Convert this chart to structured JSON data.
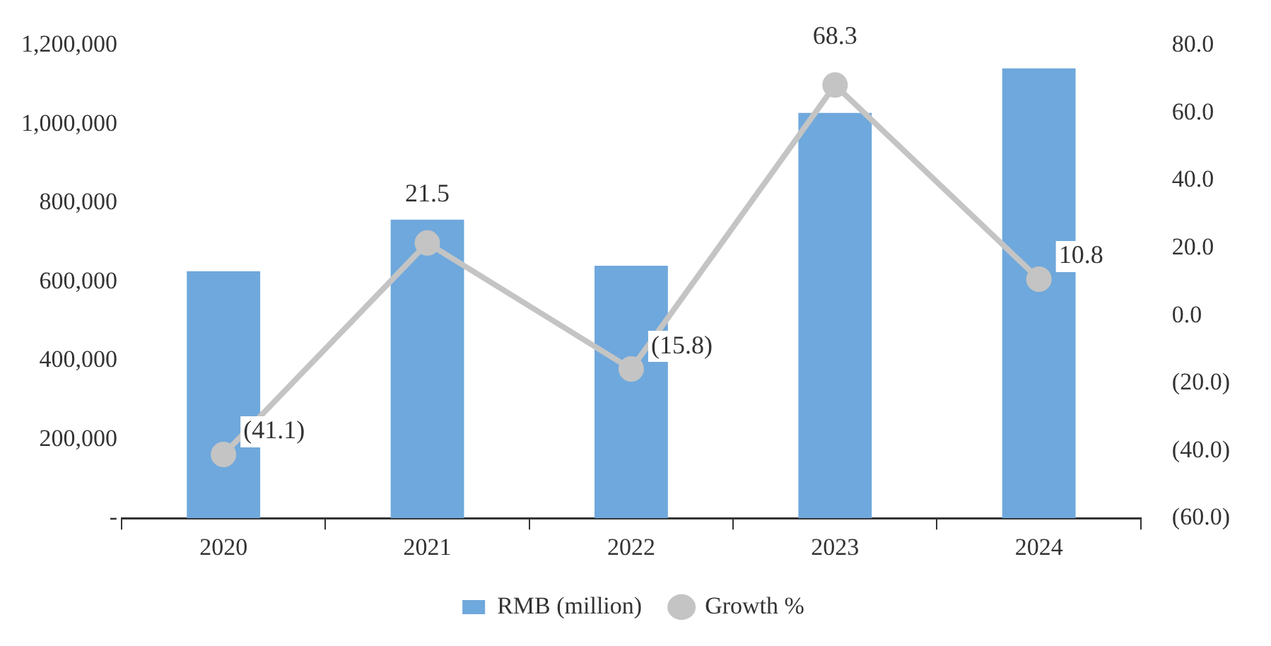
{
  "chart_data": {
    "type": "bar",
    "categories": [
      "2020",
      "2021",
      "2022",
      "2023",
      "2024"
    ],
    "series": [
      {
        "name": "RMB (million)",
        "color": "#6fa8dc",
        "values": [
          627000,
          758000,
          641000,
          1029000,
          1142000
        ]
      },
      {
        "name": "Growth %",
        "type": "line",
        "axis": "y2",
        "color": "#c4c4c4",
        "marker": "circle",
        "values": [
          -41.1,
          21.5,
          -15.8,
          68.3,
          10.8
        ],
        "value_labels": [
          "(41.1)",
          "21.5",
          "(15.8)",
          "68.3",
          "10.8"
        ]
      }
    ],
    "ylim": [
      0,
      1200000
    ],
    "yticks": [
      {
        "value": 0,
        "label": "-"
      },
      {
        "value": 200000,
        "label": "200,000"
      },
      {
        "value": 400000,
        "label": "400,000"
      },
      {
        "value": 600000,
        "label": "600,000"
      },
      {
        "value": 800000,
        "label": "800,000"
      },
      {
        "value": 1000000,
        "label": "1,000,000"
      },
      {
        "value": 1200000,
        "label": "1,200,000"
      }
    ],
    "y2lim": [
      -60,
      80
    ],
    "y2ticks": [
      {
        "value": -60,
        "label": "(60.0)"
      },
      {
        "value": -40,
        "label": "(40.0)"
      },
      {
        "value": -20,
        "label": "(20.0)"
      },
      {
        "value": 0,
        "label": "0.0"
      },
      {
        "value": 20,
        "label": "20.0"
      },
      {
        "value": 40,
        "label": "40.0"
      },
      {
        "value": 60,
        "label": "60.0"
      },
      {
        "value": 80,
        "label": "80.0"
      }
    ],
    "grid": false,
    "legend": "bottom"
  }
}
